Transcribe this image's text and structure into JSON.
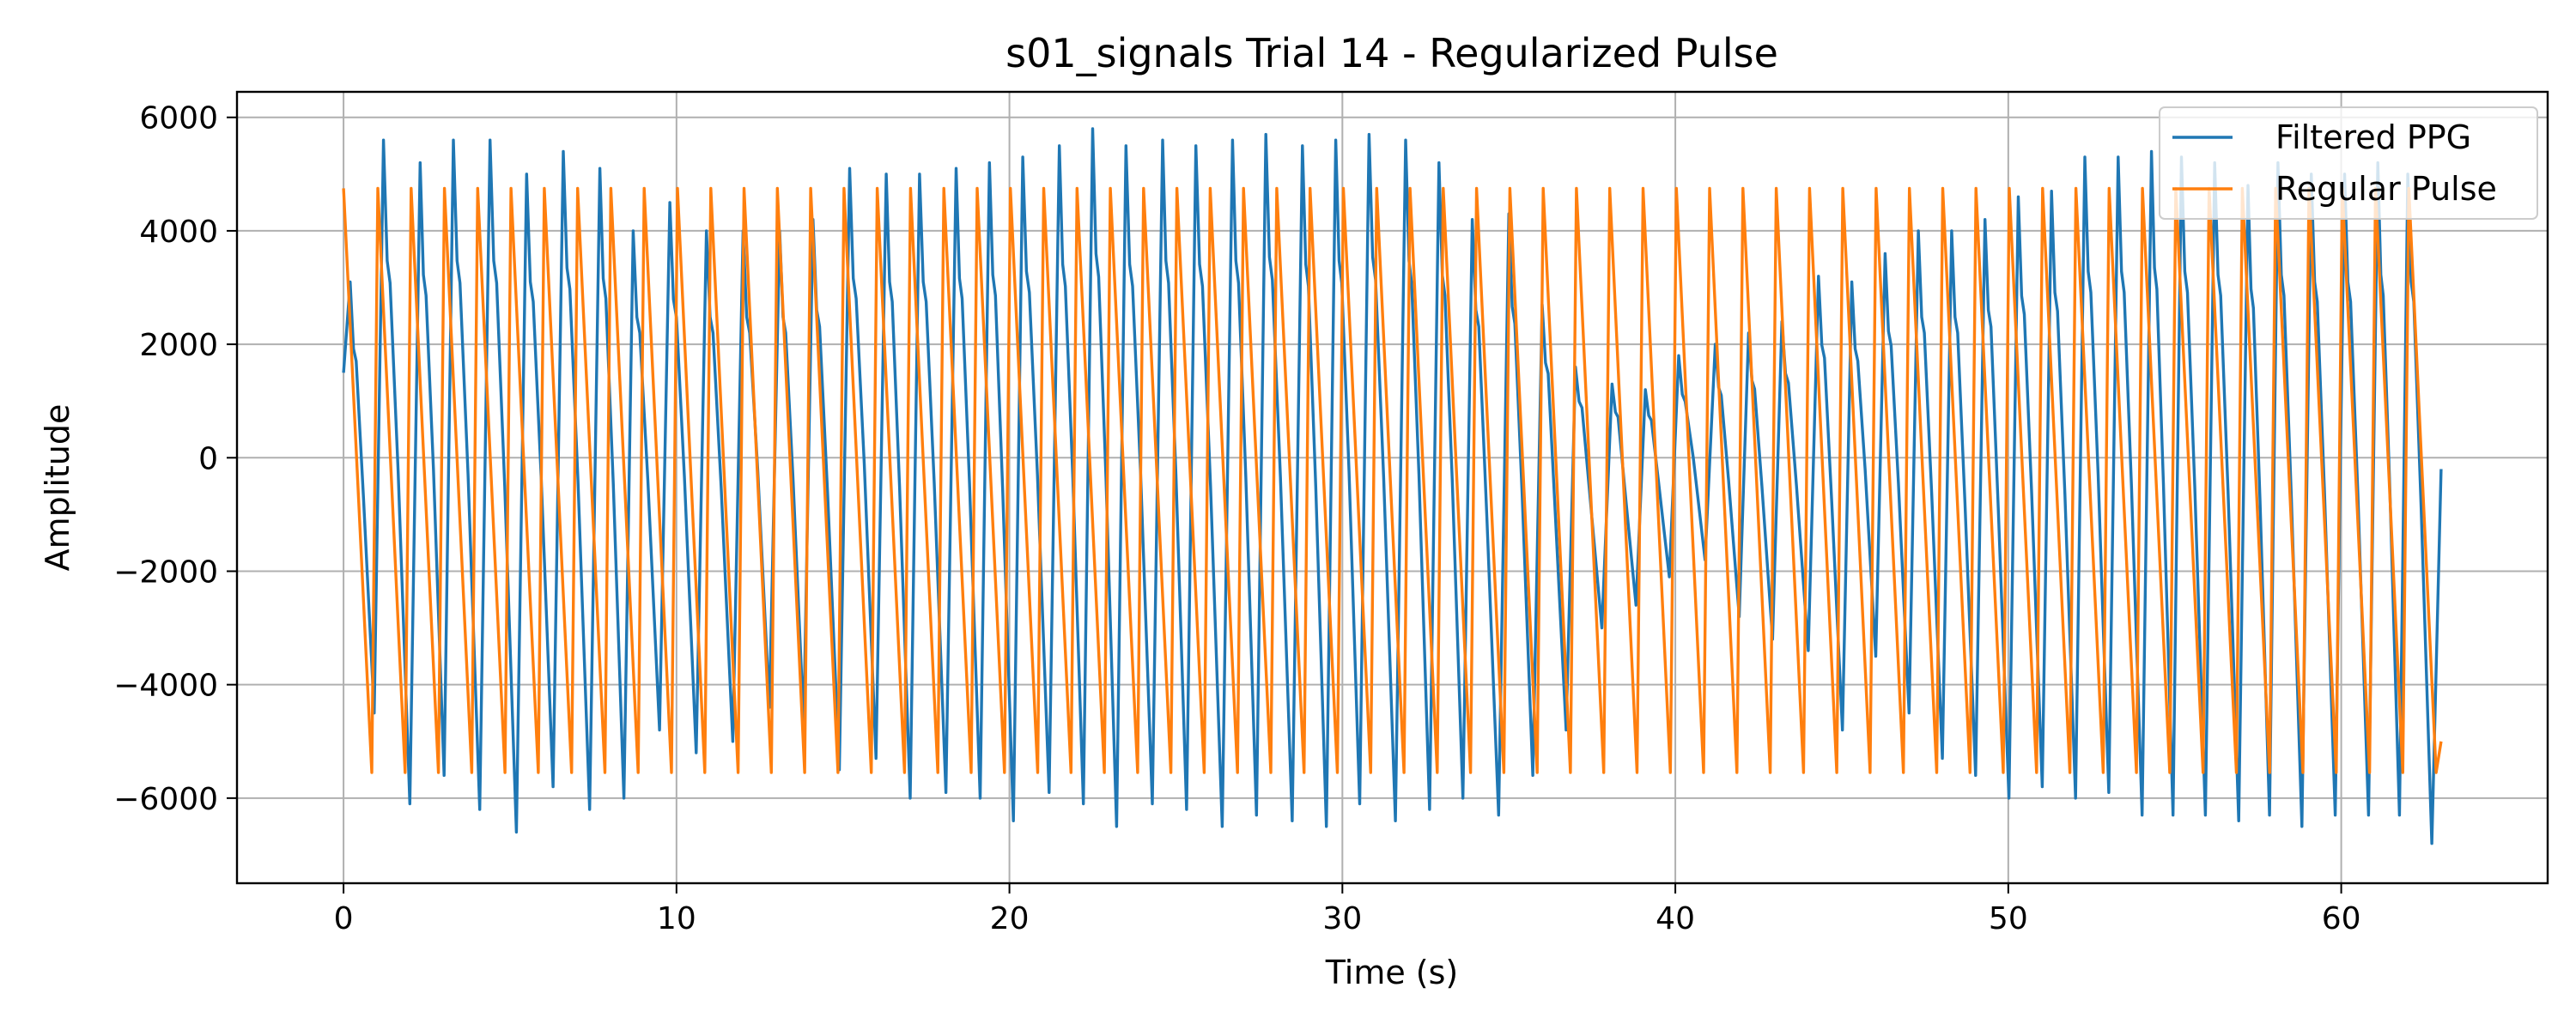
{
  "chart_data": {
    "type": "line",
    "title": "s01_signals Trial 14 - Regularized Pulse",
    "xlabel": "Time (s)",
    "ylabel": "Amplitude",
    "xlim": [
      -3.2,
      66.2
    ],
    "ylim": [
      -7500,
      6450
    ],
    "grid": true,
    "legend_position": "top-right",
    "x_ticks": [
      0,
      10,
      20,
      30,
      40,
      50,
      60
    ],
    "x_tick_labels": [
      "0",
      "10",
      "20",
      "30",
      "40",
      "50",
      "60"
    ],
    "y_ticks": [
      6000,
      4000,
      2000,
      0,
      -2000,
      -4000,
      -6000
    ],
    "y_tick_labels": [
      "6000",
      "4000",
      "2000",
      "0",
      "−2000",
      "−4000",
      "−6000"
    ],
    "series": [
      {
        "name": "Filtered PPG",
        "color": "#1f77b4",
        "x_range": [
          0,
          63
        ],
        "sample_rate_hz": 10,
        "start_value": 1500,
        "end_value": -200,
        "peak_times": [
          0.2,
          1.2,
          2.3,
          3.3,
          4.4,
          5.5,
          6.6,
          7.7,
          8.7,
          9.8,
          10.9,
          12.0,
          13.1,
          14.1,
          15.2,
          16.3,
          17.3,
          18.4,
          19.4,
          20.4,
          21.5,
          22.5,
          23.5,
          24.6,
          25.6,
          26.7,
          27.7,
          28.8,
          29.8,
          30.8,
          31.9,
          32.9,
          33.9,
          35.0,
          36.0,
          37.0,
          38.1,
          39.1,
          40.1,
          41.2,
          42.2,
          43.2,
          44.3,
          45.3,
          46.3,
          47.3,
          48.3,
          49.3,
          50.3,
          51.3,
          52.3,
          53.3,
          54.3,
          55.2,
          56.2,
          57.2,
          58.1,
          59.1,
          60.1,
          61.1,
          62.0
        ],
        "peak_values": [
          3100,
          5600,
          5200,
          5600,
          5600,
          5000,
          5400,
          5100,
          4000,
          4500,
          4000,
          4000,
          4000,
          4200,
          5100,
          5000,
          5000,
          5100,
          5200,
          5300,
          5500,
          5800,
          5500,
          5600,
          5500,
          5600,
          5700,
          5500,
          5600,
          5700,
          5600,
          5200,
          4200,
          4300,
          2700,
          1600,
          1300,
          1200,
          1800,
          2000,
          2200,
          2400,
          3200,
          3100,
          3600,
          4000,
          4000,
          4200,
          4600,
          4700,
          5300,
          5300,
          5400,
          5300,
          5200,
          4800,
          5200,
          5000,
          5000,
          5200,
          5000
        ],
        "trough_values": [
          -4500,
          -6100,
          -5600,
          -6200,
          -6600,
          -5800,
          -6200,
          -6000,
          -4800,
          -5200,
          -5000,
          -4400,
          -4700,
          -5500,
          -5300,
          -6000,
          -5900,
          -6000,
          -6400,
          -5900,
          -6100,
          -6500,
          -6100,
          -6200,
          -6500,
          -6300,
          -6400,
          -6500,
          -6100,
          -6400,
          -6200,
          -6000,
          -6300,
          -5600,
          -4800,
          -3000,
          -2600,
          -2100,
          -1800,
          -2800,
          -3200,
          -3400,
          -4800,
          -3500,
          -4500,
          -5300,
          -5600,
          -6000,
          -5800,
          -6000,
          -5900,
          -6300,
          -6300,
          -6300,
          -6400,
          -6300,
          -6500,
          -6300,
          -6300,
          -6300,
          -6800
        ]
      },
      {
        "name": "Regular Pulse",
        "color": "#ff7f0e",
        "x_range": [
          0,
          63
        ],
        "period_s": 1.0,
        "first_trough_s": 0.85,
        "peak_value": 4750,
        "trough_value": -5550,
        "end_value": -5000
      }
    ]
  }
}
